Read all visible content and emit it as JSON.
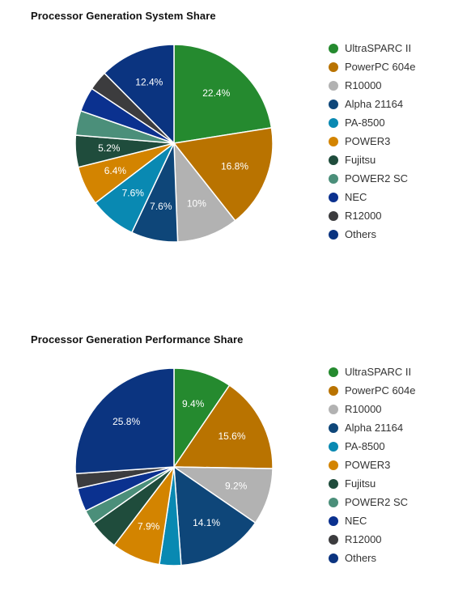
{
  "colors": {
    "UltraSPARC II": "#258a2f",
    "PowerPC 604e": "#b97300",
    "R10000": "#b2b2b2",
    "Alpha 21164": "#0e4679",
    "PA-8500": "#0989b2",
    "POWER3": "#d38400",
    "Fujitsu": "#1f4c3c",
    "POWER2 SC": "#4b8f7a",
    "NEC": "#0b318f",
    "R12000": "#3c3c3e",
    "Others": "#0b3480"
  },
  "chart_data": [
    {
      "type": "pie",
      "title": "Processor Generation System Share",
      "labels": [
        "UltraSPARC II",
        "PowerPC 604e",
        "R10000",
        "Alpha 21164",
        "PA-8500",
        "POWER3",
        "Fujitsu",
        "POWER2 SC",
        "NEC",
        "R12000",
        "Others"
      ],
      "values": [
        22.4,
        16.8,
        10,
        7.6,
        7.6,
        6.4,
        5.2,
        4.0,
        4.0,
        3.2,
        12.4
      ],
      "data_labels": [
        "22.4%",
        "16.8%",
        "10%",
        "7.6%",
        "7.6%",
        "6.4%",
        "5.2%",
        "",
        "",
        "",
        "12.4%"
      ],
      "legend_position": "right"
    },
    {
      "type": "pie",
      "title": "Processor Generation Performance Share",
      "labels": [
        "UltraSPARC II",
        "PowerPC 604e",
        "R10000",
        "Alpha 21164",
        "PA-8500",
        "POWER3",
        "Fujitsu",
        "POWER2 SC",
        "NEC",
        "R12000",
        "Others"
      ],
      "values": [
        9.4,
        15.6,
        9.2,
        14.1,
        3.5,
        7.9,
        4.8,
        2.4,
        3.8,
        2.4,
        25.8
      ],
      "data_labels": [
        "9.4%",
        "15.6%",
        "9.2%",
        "14.1%",
        "",
        "7.9%",
        "",
        "",
        "",
        "",
        "25.8%"
      ],
      "legend_position": "right"
    }
  ]
}
